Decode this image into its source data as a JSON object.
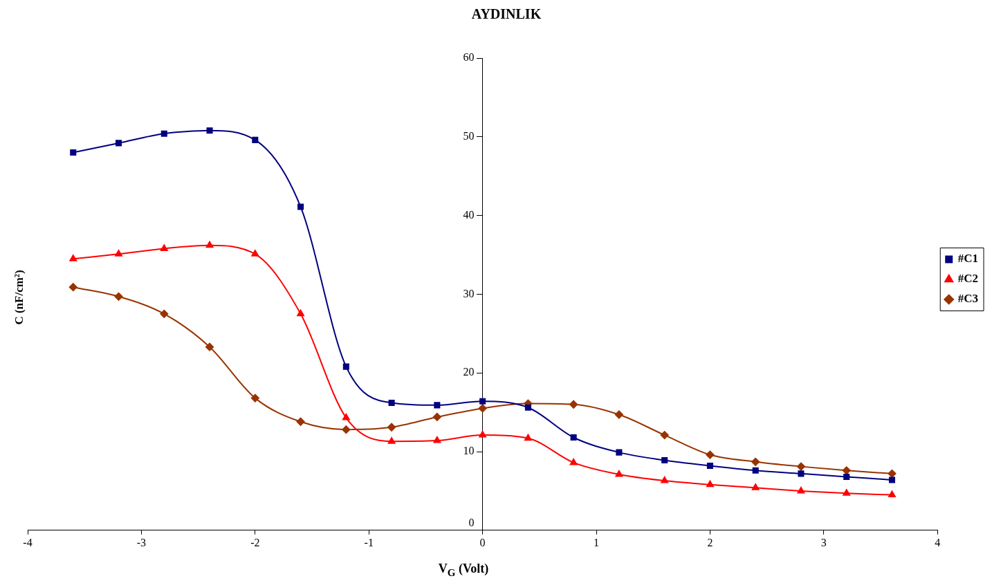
{
  "chart_data": {
    "type": "line",
    "title": "AYDINLIK",
    "xlabel": "V$_{G}$ (Volt)",
    "ylabel": "C (nF/cm²)",
    "x": [
      -3.6,
      -3.2,
      -2.8,
      -2.4,
      -2.0,
      -1.6,
      -1.2,
      -0.8,
      -0.4,
      0,
      0.4,
      0.8,
      1.2,
      1.6,
      2.0,
      2.4,
      2.8,
      3.2,
      3.6
    ],
    "series": [
      {
        "name": "#C1",
        "color": "#000080",
        "marker": "square",
        "values": [
          48.0,
          49.2,
          50.4,
          50.8,
          49.6,
          41.1,
          20.8,
          16.2,
          15.9,
          16.4,
          15.6,
          11.8,
          9.9,
          8.9,
          8.2,
          7.6,
          7.2,
          6.8,
          6.4
        ]
      },
      {
        "name": "#C2",
        "color": "#ff0000",
        "marker": "triangle",
        "values": [
          34.5,
          35.1,
          35.8,
          36.2,
          35.1,
          27.5,
          14.3,
          11.3,
          11.4,
          12.1,
          11.7,
          8.6,
          7.1,
          6.3,
          5.8,
          5.4,
          5.0,
          4.7,
          4.5
        ]
      },
      {
        "name": "#C3",
        "color": "#993300",
        "marker": "diamond",
        "values": [
          30.9,
          29.7,
          27.5,
          23.3,
          16.8,
          13.8,
          12.8,
          13.1,
          14.4,
          15.5,
          16.1,
          16.0,
          14.7,
          12.1,
          9.6,
          8.7,
          8.1,
          7.6,
          7.2
        ]
      }
    ],
    "xlim": [
      -4,
      4
    ],
    "xticks": [
      -4,
      -3,
      -2,
      -1,
      0,
      1,
      2,
      3,
      4
    ],
    "ylim": [
      0,
      60
    ],
    "yticks": [
      0,
      10,
      20,
      30,
      40,
      50,
      60
    ],
    "grid": false,
    "legend": "right"
  }
}
